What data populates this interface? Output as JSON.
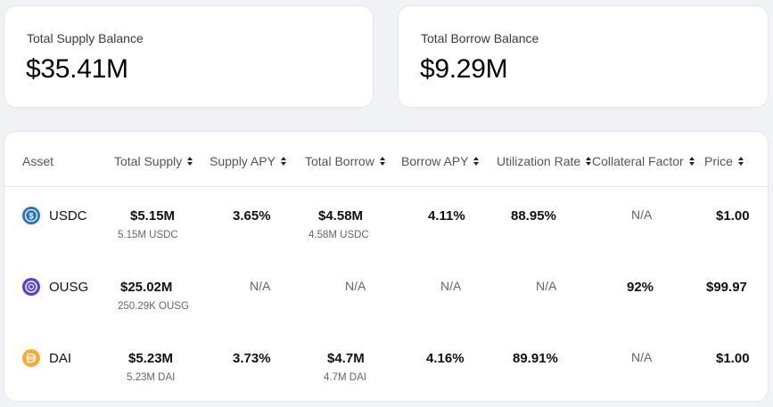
{
  "summary": {
    "supply_label": "Total Supply Balance",
    "supply_value": "$35.41M",
    "borrow_label": "Total Borrow Balance",
    "borrow_value": "$9.29M"
  },
  "table": {
    "headers": {
      "asset": "Asset",
      "total_supply": "Total Supply",
      "supply_apy": "Supply APY",
      "total_borrow": "Total Borrow",
      "borrow_apy": "Borrow APY",
      "utilization_rate": "Utilization Rate",
      "collateral_factor": "Collateral Factor",
      "price": "Price"
    },
    "rows": [
      {
        "asset": "USDC",
        "icon": "usdc-icon",
        "icon_color": "#2775ca",
        "total_supply": "$5.15M",
        "total_supply_sub": "5.15M USDC",
        "supply_apy": "3.65%",
        "total_borrow": "$4.58M",
        "total_borrow_sub": "4.58M USDC",
        "borrow_apy": "4.11%",
        "utilization_rate": "88.95%",
        "collateral_factor": "N/A",
        "price": "$1.00"
      },
      {
        "asset": "OUSG",
        "icon": "ousg-icon",
        "icon_color": "#5b3fd6",
        "total_supply": "$25.02M",
        "total_supply_sub": "250.29K OUSG",
        "supply_apy": "N/A",
        "total_borrow": "N/A",
        "total_borrow_sub": "",
        "borrow_apy": "N/A",
        "utilization_rate": "N/A",
        "collateral_factor": "92%",
        "price": "$99.97"
      },
      {
        "asset": "DAI",
        "icon": "dai-icon",
        "icon_color": "#f5ac37",
        "total_supply": "$5.23M",
        "total_supply_sub": "5.23M DAI",
        "supply_apy": "3.73%",
        "total_borrow": "$4.7M",
        "total_borrow_sub": "4.7M DAI",
        "borrow_apy": "4.16%",
        "utilization_rate": "89.91%",
        "collateral_factor": "N/A",
        "price": "$1.00"
      }
    ]
  }
}
